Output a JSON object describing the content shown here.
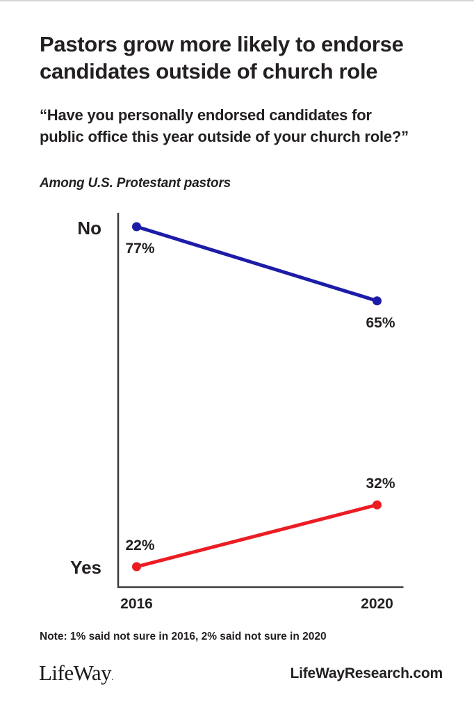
{
  "page": {
    "title_lines": [
      "Pastors grow more likely to endorse",
      "candidates outside of church role"
    ],
    "question_lines": [
      "“Have you personally endorsed candidates for",
      "public office this year outside of your church role?”"
    ],
    "population": "Among U.S. Protestant pastors",
    "note": "Note: 1% said not sure in 2016, 2% said not sure in 2020",
    "footer": {
      "logo": "LifeWay",
      "logo_mark": ".",
      "site": "LifeWayResearch.com"
    }
  },
  "colors": {
    "no_line": "#1c1ca8",
    "yes_line": "#ec1c24",
    "axis": "#3a3a3a",
    "text": "#231f20"
  },
  "chart_data": {
    "type": "line",
    "categories": [
      "2016",
      "2020"
    ],
    "series": [
      {
        "name": "No",
        "values": [
          77,
          65
        ],
        "color": "#1c1ca8",
        "label_position": "below"
      },
      {
        "name": "Yes",
        "values": [
          22,
          32
        ],
        "color": "#ec1c24",
        "label_position": "above"
      }
    ],
    "value_suffix": "%",
    "title": "Pastors grow more likely to endorse candidates outside of church role",
    "xlabel": "",
    "ylabel": "",
    "ylim": [
      18,
      80
    ],
    "grid": false,
    "legend_position": "labels-left-of-axis",
    "axes_shown": [
      "left",
      "bottom"
    ]
  }
}
